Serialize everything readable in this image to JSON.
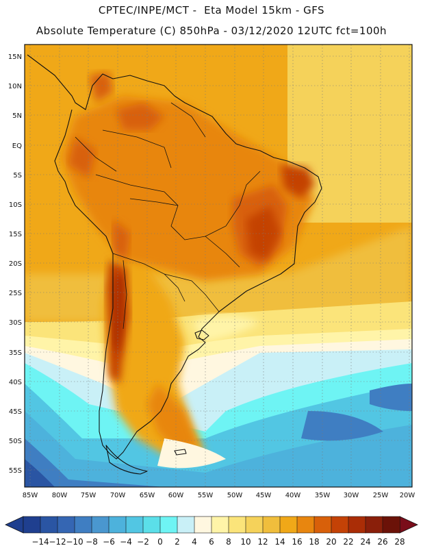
{
  "header": {
    "line1": "CPTEC/INPE/MCT -  Eta Model 15km - GFS",
    "line2": "Absolute Temperature (C) 850hPa - 03/12/2020 12UTC fct=100h"
  },
  "map": {
    "lat_labels": [
      "15N",
      "10N",
      "5N",
      "EQ",
      "5S",
      "10S",
      "15S",
      "20S",
      "25S",
      "30S",
      "35S",
      "40S",
      "45S",
      "50S",
      "55S"
    ],
    "lon_labels": [
      "85W",
      "80W",
      "75W",
      "70W",
      "65W",
      "60W",
      "55W",
      "50W",
      "45W",
      "40W",
      "35W",
      "30W",
      "25W",
      "20W"
    ]
  },
  "colorbar": {
    "labels": [
      "-14",
      "-12",
      "-10",
      "-8",
      "-6",
      "-4",
      "-2",
      "0",
      "2",
      "4",
      "6",
      "8",
      "10",
      "12",
      "14",
      "16",
      "18",
      "20",
      "22",
      "24",
      "26",
      "28"
    ],
    "colors": [
      "#1f3f8f",
      "#2a55a3",
      "#3566b3",
      "#3f7ec2",
      "#4a97cf",
      "#4db2dc",
      "#52c6e3",
      "#5bdfe9",
      "#6ef4f4",
      "#c9f0f7",
      "#fff7e0",
      "#fff4a8",
      "#fbe47a",
      "#f5d25a",
      "#f0be3c",
      "#f0a818",
      "#e8860f",
      "#d8600a",
      "#c44206",
      "#aa2d06",
      "#8a1f0a",
      "#6b1208"
    ]
  }
}
